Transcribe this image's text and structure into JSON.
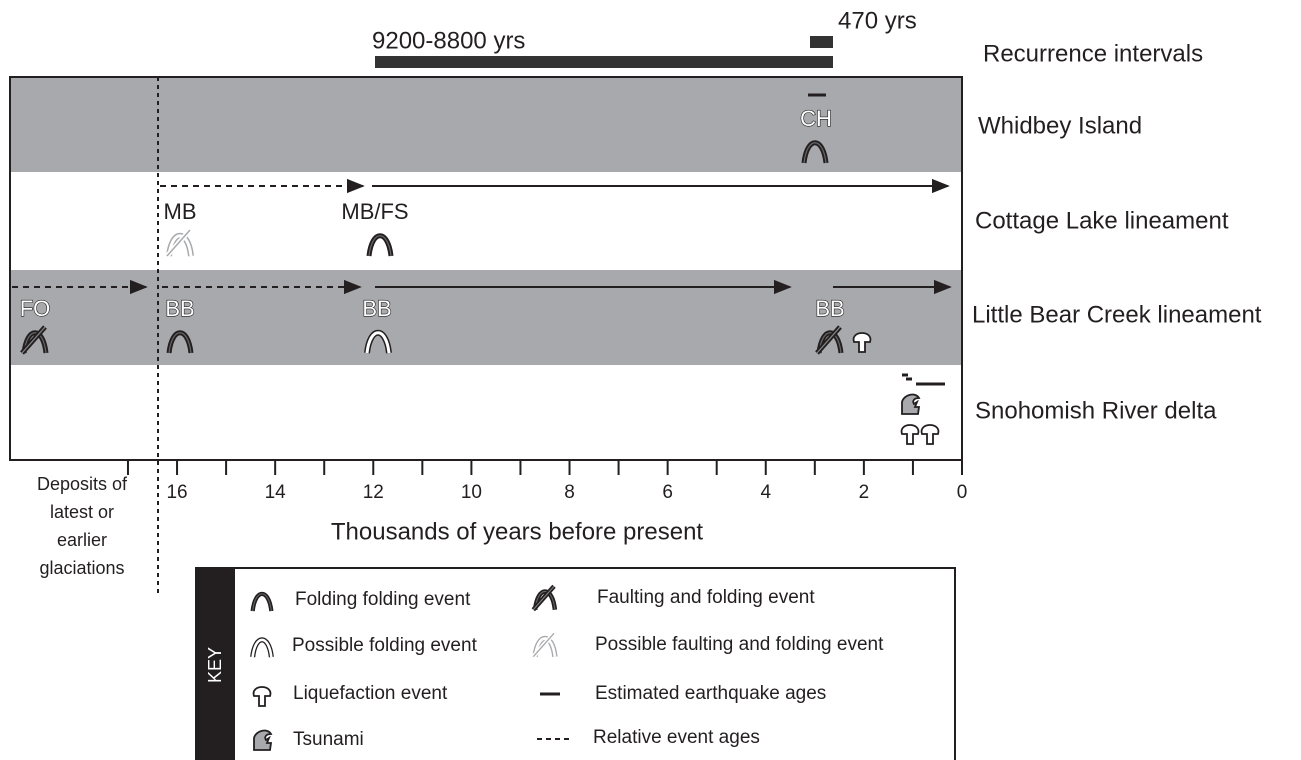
{
  "recurrence": {
    "title": "Recurrence intervals",
    "intervals": [
      "9200-8800 yrs",
      "470 yrs"
    ]
  },
  "rows": [
    {
      "label": "Whidbey Island",
      "events": [
        "CH"
      ]
    },
    {
      "label": "Cottage Lake lineament",
      "events": [
        "MB",
        "MB/FS"
      ]
    },
    {
      "label": "Little Bear Creek lineament",
      "events": [
        "FO",
        "BB",
        "BB",
        "BB"
      ]
    },
    {
      "label": "Snohomish River delta"
    }
  ],
  "axis": {
    "label": "Thousands of years before present",
    "ticks": [
      16,
      14,
      12,
      10,
      8,
      6,
      4,
      2,
      0
    ]
  },
  "note": [
    "Deposits of",
    "latest or",
    "earlier",
    "glaciations"
  ],
  "key": {
    "title": "KEY",
    "items": [
      "Folding folding event",
      "Possible folding event",
      "Liquefaction event",
      "Tsunami",
      "Faulting and folding event",
      "Possible faulting and folding event",
      "Estimated earthquake ages",
      "Relative event ages"
    ]
  }
}
